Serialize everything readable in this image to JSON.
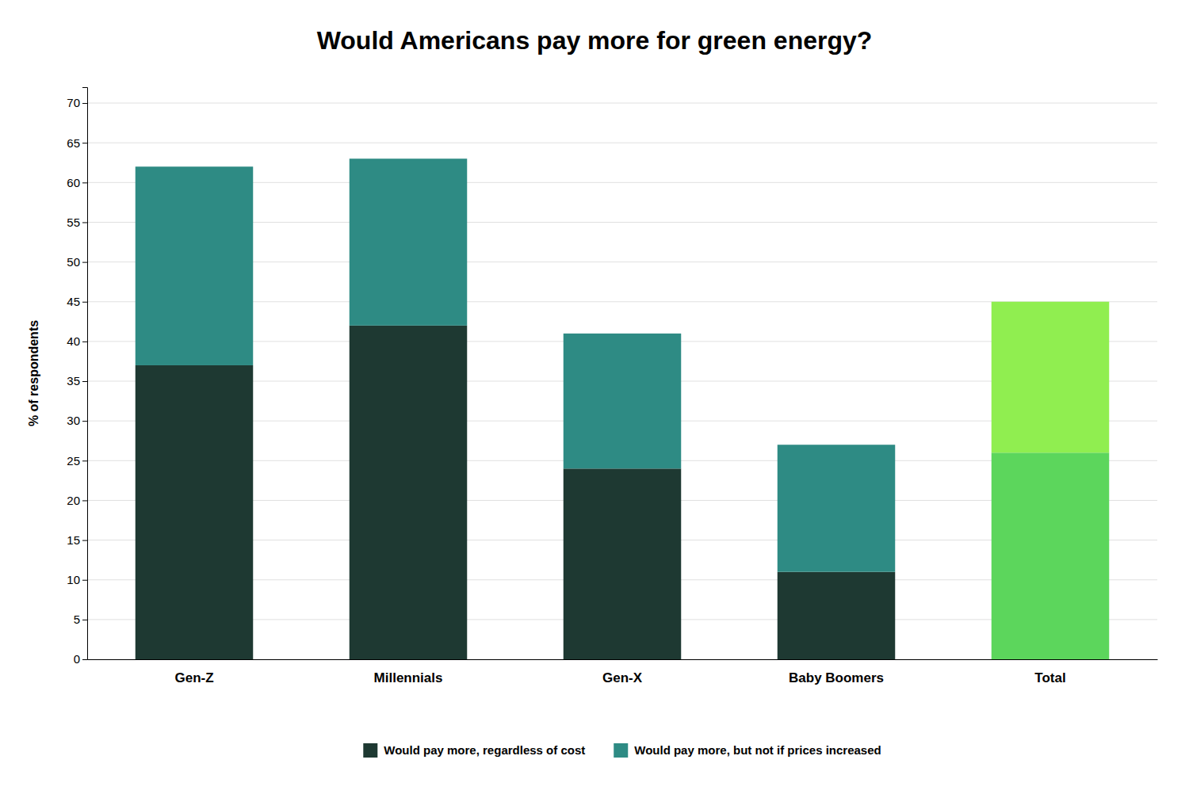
{
  "chart_data": {
    "type": "bar",
    "stacked": true,
    "title": "Would Americans pay more for green energy?",
    "ylabel": "% of respondents",
    "categories": [
      "Gen-Z",
      "Millennials",
      "Gen-X",
      "Baby Boomers",
      "Total"
    ],
    "series": [
      {
        "name": "Would pay more, regardless of cost",
        "color": "#1e3932",
        "colors": [
          "#1e3932",
          "#1e3932",
          "#1e3932",
          "#1e3932",
          "#5cd65c"
        ],
        "values": [
          37,
          42,
          24,
          11,
          26
        ]
      },
      {
        "name": "Would pay more, but not if prices increased",
        "color": "#2e8b84",
        "colors": [
          "#2e8b84",
          "#2e8b84",
          "#2e8b84",
          "#2e8b84",
          "#90ee50"
        ],
        "values": [
          25,
          21,
          17,
          16,
          19
        ]
      }
    ],
    "ylim": [
      0,
      72
    ],
    "yticks": [
      0,
      5,
      10,
      15,
      20,
      25,
      30,
      35,
      40,
      45,
      50,
      55,
      60,
      65,
      70
    ],
    "grid": true,
    "legend": "bottom"
  }
}
